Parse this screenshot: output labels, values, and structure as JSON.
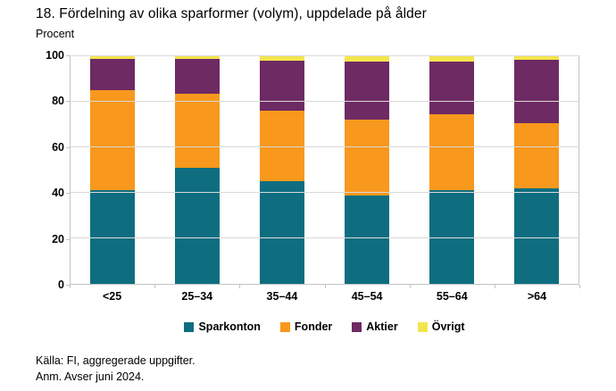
{
  "title": "18. Fördelning av olika sparformer (volym), uppdelade på ålder",
  "ylabel": "Procent",
  "footer": {
    "source": "Källa: FI, aggregerade uppgifter.",
    "note": "Anm. Avser juni 2024."
  },
  "palette": {
    "sparkonton": "#0e6e80",
    "fonder": "#f8981d",
    "aktier": "#6e2a63",
    "ovrigt": "#f3e54e",
    "gridline": "#d9d9d9",
    "axis": "#c4c4c4"
  },
  "chart_data": {
    "type": "bar",
    "stacked": true,
    "unit": "percent",
    "title": "18. Fördelning av olika sparformer (volym), uppdelade på ålder",
    "xlabel": "",
    "ylabel": "Procent",
    "categories": [
      "<25",
      "25–34",
      "35–44",
      "45–54",
      "55–64",
      ">64"
    ],
    "series": [
      {
        "name": "Sparkonton",
        "color": "#0e6e80",
        "values": [
          41,
          51,
          45,
          39,
          41,
          42
        ]
      },
      {
        "name": "Fonder",
        "color": "#f8981d",
        "values": [
          44,
          32.5,
          31,
          33,
          33.5,
          28.5
        ]
      },
      {
        "name": "Aktier",
        "color": "#6e2a63",
        "values": [
          14,
          15.5,
          22,
          25.5,
          23,
          28
        ]
      },
      {
        "name": "Övrigt",
        "color": "#f3e54e",
        "values": [
          1,
          1,
          2,
          2.5,
          2.5,
          1.5
        ]
      }
    ],
    "ylim": [
      0,
      100
    ],
    "yticks": [
      0,
      20,
      40,
      60,
      80,
      100
    ],
    "grid": true,
    "legend_position": "bottom"
  }
}
